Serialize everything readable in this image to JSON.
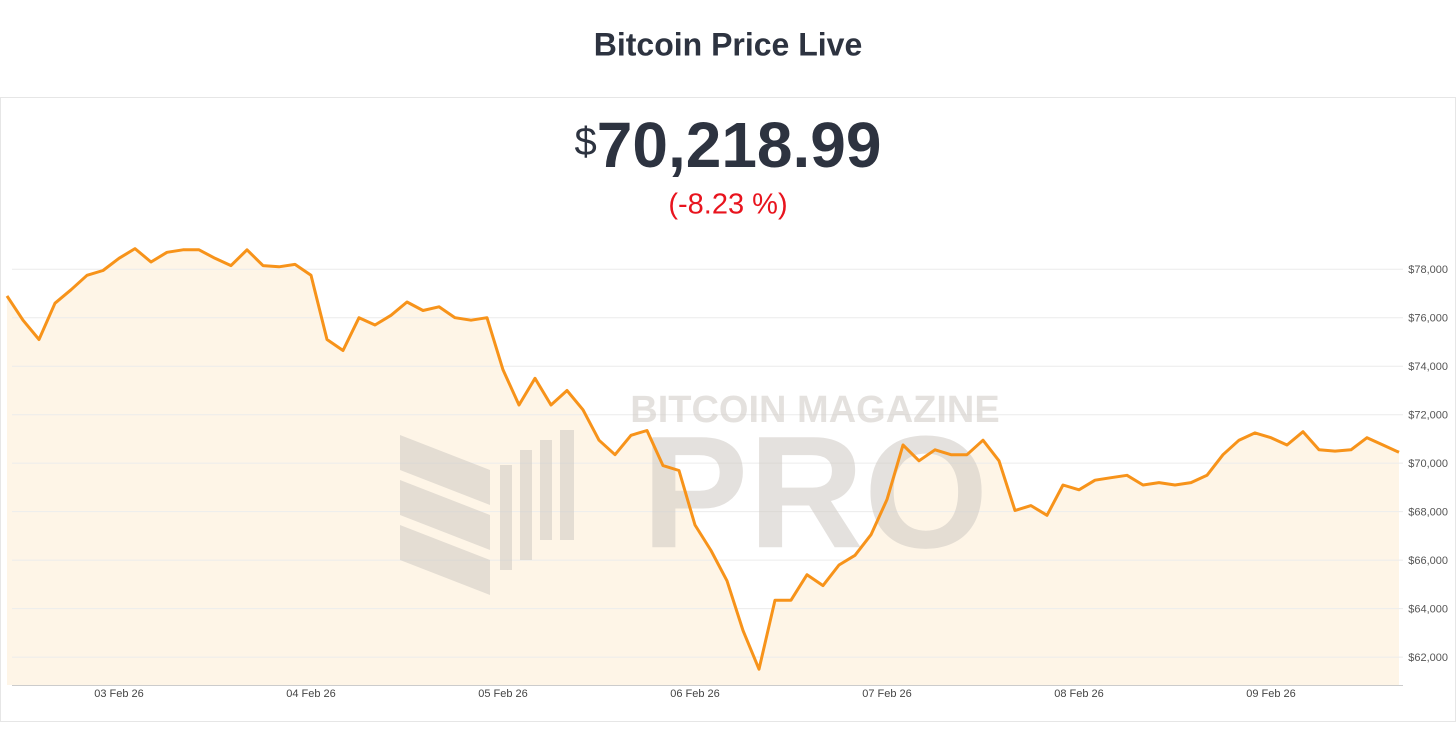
{
  "title": "Bitcoin Price Live",
  "price": {
    "currency": "$",
    "amount": "70,218.99",
    "change": "(-8.23 %)"
  },
  "watermark": {
    "top": "BITCOIN MAGAZINE",
    "bottom": "PRO"
  },
  "chart_data": {
    "type": "line",
    "categories": [
      null,
      null,
      null,
      null,
      null,
      null,
      null,
      "03 Feb 26",
      null,
      null,
      null,
      null,
      null,
      null,
      null,
      null,
      null,
      null,
      null,
      "04 Feb 26",
      null,
      null,
      null,
      null,
      null,
      null,
      null,
      null,
      null,
      null,
      null,
      "05 Feb 26",
      null,
      null,
      null,
      null,
      null,
      null,
      null,
      null,
      null,
      null,
      null,
      "06 Feb 26",
      null,
      null,
      null,
      null,
      null,
      null,
      null,
      null,
      null,
      null,
      null,
      "07 Feb 26",
      null,
      null,
      null,
      null,
      null,
      null,
      null,
      null,
      null,
      null,
      null,
      "08 Feb 26",
      null,
      null,
      null,
      null,
      null,
      null,
      null,
      null,
      null,
      null,
      null,
      "09 Feb 26",
      null,
      null,
      null,
      null,
      null,
      null,
      null,
      null
    ],
    "series": [
      {
        "color": "#f7931a",
        "values": [
          76900,
          75900,
          75100,
          76600,
          77150,
          77750,
          77950,
          78450,
          78850,
          78300,
          78700,
          78800,
          78800,
          78450,
          78150,
          78800,
          78150,
          78100,
          78200,
          77750,
          75100,
          74650,
          76000,
          75700,
          76100,
          76650,
          76300,
          76450,
          76000,
          75900,
          76000,
          73850,
          72400,
          73500,
          72400,
          73000,
          72200,
          70950,
          70350,
          71150,
          71350,
          69900,
          69700,
          67450,
          66400,
          65150,
          63100,
          61500,
          64350,
          64350,
          65400,
          64950,
          65800,
          66200,
          67050,
          68500,
          70750,
          70100,
          70550,
          70350,
          70350,
          70950,
          70100,
          68050,
          68250,
          67850,
          69100,
          68900,
          69300,
          69400,
          69500,
          69100,
          69200,
          69100,
          69200,
          69500,
          70350,
          70950,
          71250,
          71050,
          70750,
          71300,
          70550,
          70500,
          70550,
          71050,
          70750,
          70450
        ]
      }
    ],
    "ylim": [
      60850,
      79000
    ],
    "yticks": [
      {
        "value": 62000,
        "label": "$62,000"
      },
      {
        "value": 64000,
        "label": "$64,000"
      },
      {
        "value": 66000,
        "label": "$66,000"
      },
      {
        "value": 68000,
        "label": "$68,000"
      },
      {
        "value": 70000,
        "label": "$70,000"
      },
      {
        "value": 72000,
        "label": "$72,000"
      },
      {
        "value": 74000,
        "label": "$74,000"
      },
      {
        "value": 76000,
        "label": "$76,000"
      },
      {
        "value": 78000,
        "label": "$78,000"
      }
    ],
    "grid": true,
    "area_color": "#fef5e7"
  }
}
